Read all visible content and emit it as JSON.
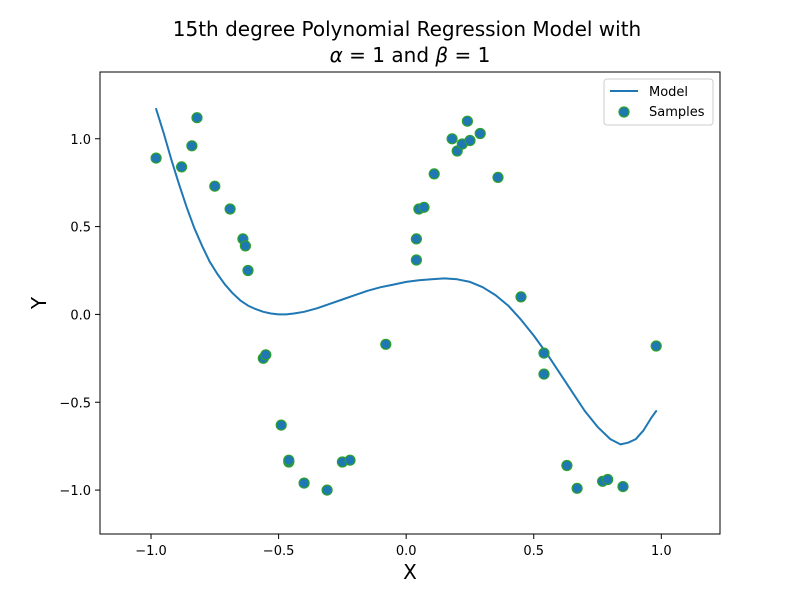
{
  "chart_data": {
    "type": "scatter",
    "title_line1": "15th degree Polynomial Regression Model with",
    "title_line2_parts": [
      "α",
      " = 1 and ",
      "β",
      " = 1"
    ],
    "xlabel": "X",
    "ylabel": "Y",
    "xlim": [
      -1.2,
      1.23
    ],
    "ylim": [
      -1.25,
      1.38
    ],
    "xticks": [
      -1.0,
      -0.5,
      0.0,
      0.5,
      1.0
    ],
    "xtick_labels": [
      "−1.0",
      "−0.5",
      "0.0",
      "0.5",
      "1.0"
    ],
    "yticks": [
      -1.0,
      -0.5,
      0.0,
      0.5,
      1.0
    ],
    "ytick_labels": [
      "−1.0",
      "−0.5",
      "0.0",
      "0.5",
      "1.0"
    ],
    "grid": false,
    "legend_position": "top-right",
    "series": [
      {
        "name": "Model",
        "kind": "line",
        "color": "#1f77b4",
        "x": [
          -0.98,
          -0.95,
          -0.92,
          -0.89,
          -0.86,
          -0.83,
          -0.8,
          -0.77,
          -0.74,
          -0.71,
          -0.68,
          -0.65,
          -0.62,
          -0.59,
          -0.56,
          -0.53,
          -0.5,
          -0.47,
          -0.44,
          -0.4,
          -0.35,
          -0.3,
          -0.25,
          -0.2,
          -0.15,
          -0.1,
          -0.05,
          0.0,
          0.05,
          0.1,
          0.15,
          0.2,
          0.25,
          0.3,
          0.35,
          0.4,
          0.45,
          0.5,
          0.55,
          0.6,
          0.65,
          0.7,
          0.75,
          0.8,
          0.84,
          0.87,
          0.9,
          0.93,
          0.96,
          0.98
        ],
        "y": [
          1.17,
          1.03,
          0.88,
          0.74,
          0.61,
          0.49,
          0.39,
          0.3,
          0.23,
          0.17,
          0.12,
          0.08,
          0.05,
          0.03,
          0.015,
          0.005,
          0.0,
          0.0,
          0.005,
          0.015,
          0.035,
          0.06,
          0.085,
          0.11,
          0.135,
          0.155,
          0.17,
          0.185,
          0.195,
          0.2,
          0.205,
          0.2,
          0.185,
          0.155,
          0.11,
          0.05,
          -0.03,
          -0.12,
          -0.22,
          -0.33,
          -0.44,
          -0.55,
          -0.64,
          -0.71,
          -0.74,
          -0.73,
          -0.71,
          -0.66,
          -0.59,
          -0.55
        ]
      },
      {
        "name": "Samples",
        "kind": "scatter",
        "color": "#1f77b4",
        "edgecolor": "#2ca02c",
        "x": [
          -0.98,
          -0.88,
          -0.84,
          -0.82,
          -0.75,
          -0.69,
          -0.64,
          -0.63,
          -0.62,
          -0.56,
          -0.55,
          -0.49,
          -0.46,
          -0.46,
          -0.4,
          -0.31,
          -0.25,
          -0.22,
          -0.08,
          0.04,
          0.04,
          0.05,
          0.07,
          0.11,
          0.18,
          0.2,
          0.22,
          0.24,
          0.25,
          0.29,
          0.36,
          0.45,
          0.54,
          0.54,
          0.63,
          0.67,
          0.77,
          0.79,
          0.85,
          0.98
        ],
        "y": [
          0.89,
          0.84,
          0.96,
          1.12,
          0.73,
          0.6,
          0.43,
          0.39,
          0.25,
          -0.25,
          -0.23,
          -0.63,
          -0.84,
          -0.83,
          -0.96,
          -1.0,
          -0.84,
          -0.83,
          -0.17,
          0.43,
          0.31,
          0.6,
          0.61,
          0.8,
          1.0,
          0.93,
          0.97,
          1.1,
          0.99,
          1.03,
          0.78,
          0.1,
          -0.22,
          -0.34,
          -0.86,
          -0.99,
          -0.95,
          -0.94,
          -0.98,
          -0.18
        ]
      }
    ]
  }
}
